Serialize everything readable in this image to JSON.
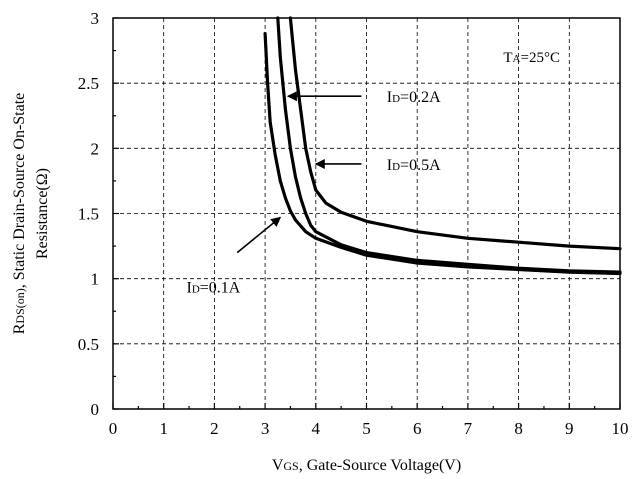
{
  "chart_data": {
    "type": "line",
    "title": "",
    "xlabel": {
      "main": "V",
      "sub": "GS",
      "rest": ", Gate-Source Voltage(V)"
    },
    "ylabel": {
      "line1": {
        "main": "R",
        "sub": "DS(on)",
        "rest": ", Static Drain-Source On-State"
      },
      "line2": "Resistance(Ω)"
    },
    "xlim": [
      0,
      10
    ],
    "ylim": [
      0,
      3
    ],
    "x_ticks": [
      "0",
      "1",
      "2",
      "3",
      "4",
      "5",
      "6",
      "7",
      "8",
      "9",
      "10"
    ],
    "y_ticks": [
      "0",
      "0.5",
      "1",
      "1.5",
      "2",
      "2.5",
      "3"
    ],
    "x_minor_step": 0.5,
    "y_minor_step": 0.25,
    "grid": true,
    "condition": {
      "main": "T",
      "sub": "A",
      "rest": "=25°C"
    },
    "series": [
      {
        "name": "ID=0.1A",
        "label": {
          "main": "I",
          "sub": "D",
          "rest": "=0.1A"
        },
        "points": [
          [
            3.0,
            2.88
          ],
          [
            3.05,
            2.5
          ],
          [
            3.1,
            2.2
          ],
          [
            3.2,
            1.95
          ],
          [
            3.3,
            1.75
          ],
          [
            3.4,
            1.62
          ],
          [
            3.5,
            1.52
          ],
          [
            3.6,
            1.45
          ],
          [
            3.8,
            1.36
          ],
          [
            4.0,
            1.31
          ],
          [
            4.5,
            1.24
          ],
          [
            5.0,
            1.18
          ],
          [
            6.0,
            1.12
          ],
          [
            7.0,
            1.09
          ],
          [
            8.0,
            1.07
          ],
          [
            9.0,
            1.05
          ],
          [
            10.0,
            1.04
          ]
        ]
      },
      {
        "name": "ID=0.2A",
        "label": {
          "main": "I",
          "sub": "D",
          "rest": "=0.2A"
        },
        "points": [
          [
            3.25,
            3.0
          ],
          [
            3.3,
            2.7
          ],
          [
            3.4,
            2.3
          ],
          [
            3.5,
            2.0
          ],
          [
            3.6,
            1.78
          ],
          [
            3.7,
            1.62
          ],
          [
            3.8,
            1.5
          ],
          [
            3.9,
            1.41
          ],
          [
            4.0,
            1.36
          ],
          [
            4.5,
            1.26
          ],
          [
            5.0,
            1.2
          ],
          [
            6.0,
            1.14
          ],
          [
            7.0,
            1.11
          ],
          [
            8.0,
            1.08
          ],
          [
            9.0,
            1.06
          ],
          [
            10.0,
            1.05
          ]
        ]
      },
      {
        "name": "ID=0.5A",
        "label": {
          "main": "I",
          "sub": "D",
          "rest": "=0.5A"
        },
        "points": [
          [
            3.5,
            3.0
          ],
          [
            3.6,
            2.6
          ],
          [
            3.7,
            2.3
          ],
          [
            3.8,
            2.0
          ],
          [
            3.9,
            1.82
          ],
          [
            4.0,
            1.68
          ],
          [
            4.2,
            1.58
          ],
          [
            4.5,
            1.51
          ],
          [
            5.0,
            1.44
          ],
          [
            6.0,
            1.36
          ],
          [
            7.0,
            1.31
          ],
          [
            8.0,
            1.28
          ],
          [
            9.0,
            1.25
          ],
          [
            10.0,
            1.23
          ]
        ]
      }
    ],
    "annotations": [
      {
        "series": "ID=0.2A",
        "arrow_from": [
          4.9,
          2.4
        ],
        "arrow_to": [
          3.45,
          2.4
        ],
        "text_at": [
          5.4,
          2.4
        ]
      },
      {
        "series": "ID=0.5A",
        "arrow_from": [
          4.9,
          1.88
        ],
        "arrow_to": [
          4.0,
          1.88
        ],
        "text_at": [
          5.4,
          1.88
        ]
      },
      {
        "series": "ID=0.1A",
        "arrow_from": [
          2.45,
          1.2
        ],
        "arrow_to": [
          3.3,
          1.47
        ],
        "text_at": [
          1.45,
          0.94
        ]
      }
    ]
  }
}
